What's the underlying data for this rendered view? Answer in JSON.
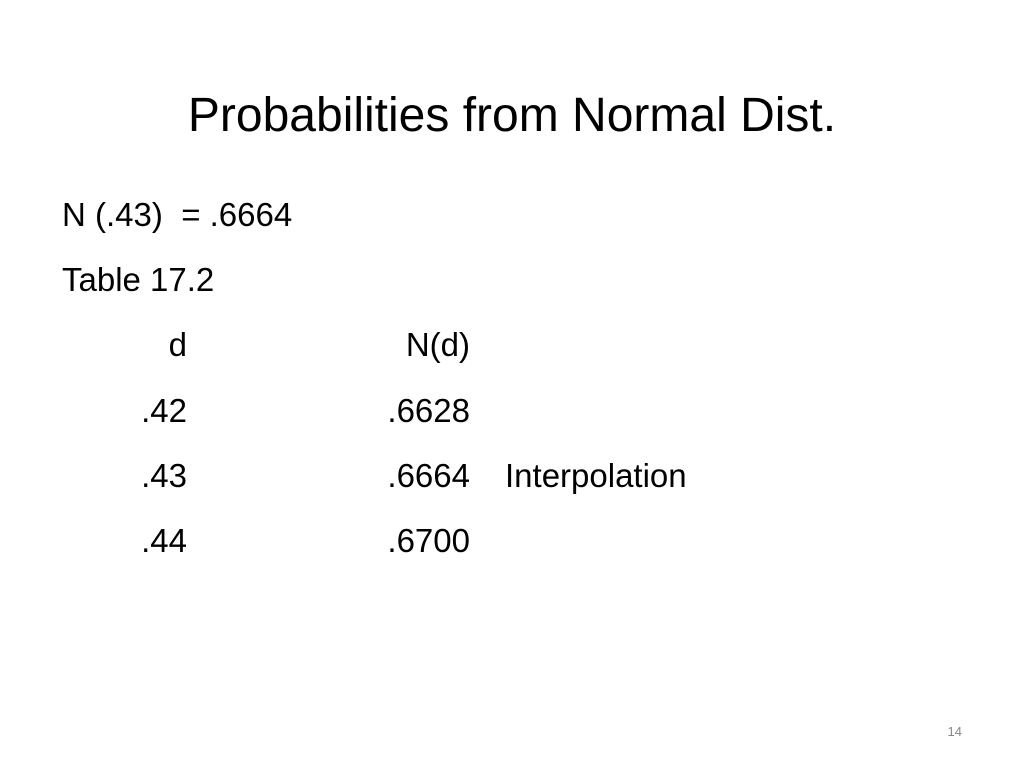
{
  "title": "Probabilities from Normal Dist.",
  "lines": [
    "N (.43)  = .6664",
    "Table 17.2"
  ],
  "table": {
    "header": [
      "d",
      "N(d)"
    ],
    "rows": [
      [
        ".42",
        ".6628"
      ],
      [
        ".43",
        ".6664"
      ],
      [
        ".44",
        ".6700"
      ]
    ]
  },
  "annotation": "Interpolation",
  "page_number": "14"
}
